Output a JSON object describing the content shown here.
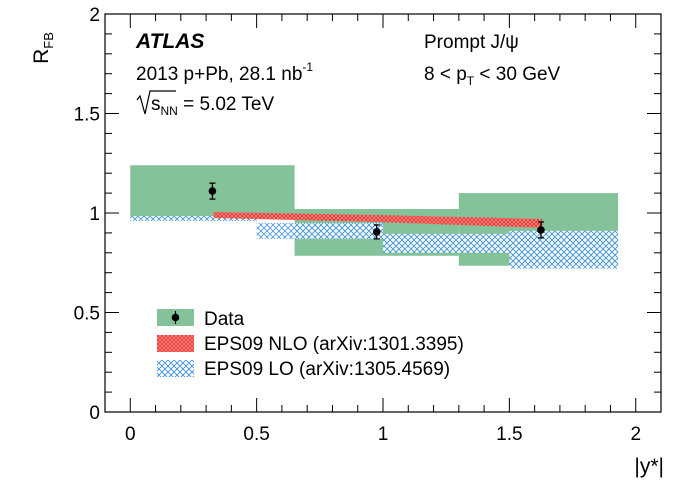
{
  "chart_data": {
    "type": "scatter",
    "xlabel": "|y*|",
    "ylabel_main": "R",
    "ylabel_sub": "FB",
    "xlim": [
      -0.1,
      2.1
    ],
    "ylim": [
      0,
      2
    ],
    "x_ticks": [
      {
        "v": 0,
        "label": "0"
      },
      {
        "v": 0.5,
        "label": "0.5"
      },
      {
        "v": 1,
        "label": "1"
      },
      {
        "v": 1.5,
        "label": "1.5"
      },
      {
        "v": 2,
        "label": "2"
      }
    ],
    "y_ticks": [
      {
        "v": 0,
        "label": "0"
      },
      {
        "v": 0.5,
        "label": "0.5"
      },
      {
        "v": 1,
        "label": "1"
      },
      {
        "v": 1.5,
        "label": "1.5"
      },
      {
        "v": 2,
        "label": "2"
      }
    ],
    "annotations": {
      "experiment": "ATLAS",
      "dataset_prefix": "2013 p+Pb, 28.1 nb",
      "dataset_sup": "-1",
      "energy_s": "s",
      "energy_sub": "NN",
      "energy_value": " = 5.02 TeV",
      "process": "Prompt J/ψ",
      "cut_left": "8 < p",
      "cut_sub": "T",
      "cut_right": " < 30 GeV"
    },
    "series": [
      {
        "name": "Data",
        "color": "#000000",
        "syst_color": "#84c29a",
        "points": [
          {
            "x": 0.325,
            "y": 1.11,
            "yerr": 0.04,
            "syst_x": [
              0,
              0.65
            ],
            "syst_y": [
              0.97,
              1.24
            ]
          },
          {
            "x": 0.975,
            "y": 0.905,
            "yerr": 0.035,
            "syst_x": [
              0.65,
              1.3
            ],
            "syst_y": [
              0.785,
              1.02
            ]
          },
          {
            "x": 1.625,
            "y": 0.915,
            "yerr": 0.04,
            "syst_x": [
              1.3,
              1.93
            ],
            "syst_y": [
              0.735,
              1.1
            ]
          }
        ]
      },
      {
        "name": "EPS09 NLO (arXiv:1301.3395)",
        "color": "#e8322d",
        "bands": [
          {
            "x": [
              0.33,
              0.98
            ],
            "lo": [
              0.975,
              0.955
            ],
            "hi": [
              1.005,
              0.99
            ]
          },
          {
            "x": [
              0.98,
              1.63
            ],
            "lo": [
              0.955,
              0.925
            ],
            "hi": [
              0.99,
              0.97
            ]
          }
        ]
      },
      {
        "name": "EPS09 LO (arXiv:1305.4569)",
        "color": "#3d8fe0",
        "bands": [
          {
            "x": [
              0,
              0.5
            ],
            "lo": [
              0.96,
              0.96
            ],
            "hi": [
              0.985,
              0.985
            ]
          },
          {
            "x": [
              0.5,
              1
            ],
            "lo": [
              0.87,
              0.87
            ],
            "hi": [
              0.95,
              0.95
            ]
          },
          {
            "x": [
              1,
              1.5
            ],
            "lo": [
              0.8,
              0.8
            ],
            "hi": [
              0.895,
              0.895
            ]
          },
          {
            "x": [
              1.5,
              1.93
            ],
            "lo": [
              0.72,
              0.72
            ],
            "hi": [
              0.91,
              0.91
            ]
          }
        ]
      }
    ],
    "legend_placement": "bottom-left",
    "grid": false
  }
}
